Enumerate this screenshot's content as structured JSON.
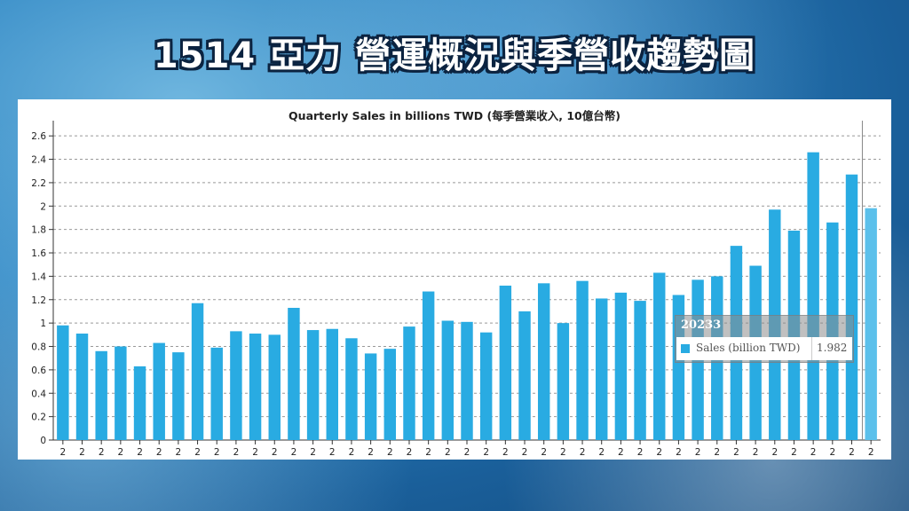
{
  "headline": "1514 亞力 營運概況與季營收趨勢圖",
  "chart_data": {
    "type": "bar",
    "title": "Quarterly Sales in billions TWD (每季營業收入, 10億台幣)",
    "categories": [
      "2",
      "2",
      "2",
      "2",
      "2",
      "2",
      "2",
      "2",
      "2",
      "2",
      "2",
      "2",
      "2",
      "2",
      "2",
      "2",
      "2",
      "2",
      "2",
      "2",
      "2",
      "2",
      "2",
      "2",
      "2",
      "2",
      "2",
      "2",
      "2",
      "2",
      "2",
      "2",
      "2",
      "2",
      "2",
      "2",
      "2",
      "2",
      "2",
      "2",
      "2",
      "2",
      "2"
    ],
    "series": [
      {
        "name": "Sales (billion TWD)",
        "values": [
          0.98,
          0.91,
          0.76,
          0.8,
          0.63,
          0.83,
          0.75,
          1.17,
          0.79,
          0.93,
          0.91,
          0.9,
          1.13,
          0.94,
          0.95,
          0.87,
          0.74,
          0.78,
          0.97,
          1.27,
          1.02,
          1.01,
          0.92,
          1.32,
          1.1,
          1.34,
          1.0,
          1.36,
          1.21,
          1.26,
          1.19,
          1.43,
          1.24,
          1.37,
          1.4,
          1.66,
          1.49,
          1.97,
          1.79,
          2.46,
          1.86,
          2.27,
          1.982
        ]
      }
    ],
    "ylim": [
      0,
      2.7
    ],
    "yticks": [
      "0",
      "0.2",
      "0.4",
      "0.6",
      "0.8",
      "1",
      "1.2",
      "1.4",
      "1.6",
      "1.8",
      "2",
      "2.2",
      "2.4",
      "2.6"
    ],
    "grid": true,
    "bar_color": "#29abe2",
    "highlight_color": "#5bc0eb",
    "highlight_index": 42
  },
  "tooltip": {
    "header": "20233",
    "series_label": "Sales (billion TWD)",
    "value": "1.982"
  }
}
